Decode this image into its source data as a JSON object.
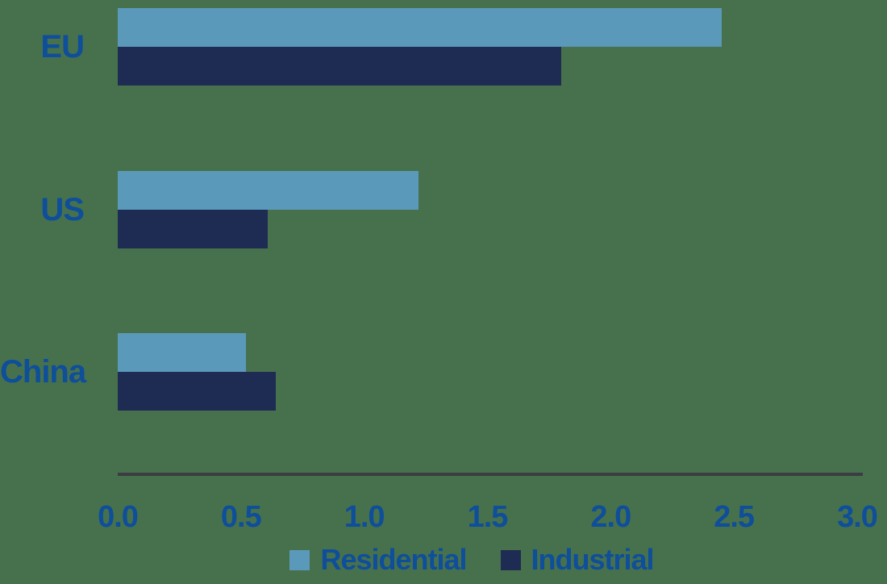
{
  "chart_data": {
    "type": "bar",
    "orientation": "horizontal",
    "title": "",
    "xlabel": "",
    "ylabel": "",
    "categories": [
      "EU",
      "US",
      "China"
    ],
    "series": [
      {
        "name": "Residential",
        "color": "#5A99BA",
        "values": [
          2.45,
          1.22,
          0.52
        ]
      },
      {
        "name": "Industrial",
        "color": "#1E2B52",
        "values": [
          1.8,
          0.61,
          0.64
        ]
      }
    ],
    "xlim": [
      0,
      3
    ],
    "xticks": [
      "0.0",
      "0.5",
      "1.0",
      "1.5",
      "2.0",
      "2.5",
      "3.0"
    ],
    "grid": "off",
    "legend_position": "bottom",
    "colors": {
      "background": "#47714D",
      "label_text": "#0E4E9B",
      "axis_line": "#3C3C43"
    }
  }
}
